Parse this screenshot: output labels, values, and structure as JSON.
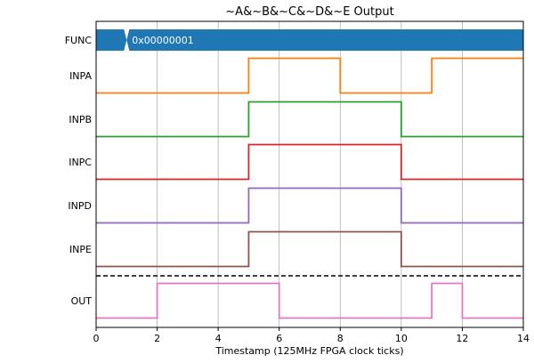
{
  "chart_data": {
    "type": "line",
    "title": "~A&~B&~C&~D&~E Output",
    "xlabel": "Timestamp (125MHz FPGA clock ticks)",
    "ylabel": "",
    "xlim": [
      0,
      14
    ],
    "x_ticks": [
      "0",
      "2",
      "4",
      "6",
      "8",
      "10",
      "12",
      "14"
    ],
    "grid": "vertical",
    "bus": {
      "name": "FUNC",
      "color": "#1f77b4",
      "transitions": [
        1
      ],
      "value_label": "0x00000001"
    },
    "series": [
      {
        "name": "INPA",
        "color": "#ff7f0e",
        "x": [
          0,
          5,
          8,
          11,
          14
        ],
        "y": [
          0,
          1,
          0,
          1,
          1
        ]
      },
      {
        "name": "INPB",
        "color": "#2ca02c",
        "x": [
          0,
          5,
          10,
          14
        ],
        "y": [
          0,
          1,
          0,
          0
        ]
      },
      {
        "name": "INPC",
        "color": "#d62728",
        "x": [
          0,
          5,
          10,
          14
        ],
        "y": [
          0,
          1,
          0,
          0
        ]
      },
      {
        "name": "INPD",
        "color": "#9467bd",
        "x": [
          0,
          5,
          10,
          14
        ],
        "y": [
          0,
          1,
          0,
          0
        ]
      },
      {
        "name": "INPE",
        "color": "#8c564b",
        "x": [
          0,
          5,
          10,
          14
        ],
        "y": [
          0,
          1,
          0,
          0
        ]
      },
      {
        "name": "OUT",
        "color": "#e377c2",
        "x": [
          0,
          2,
          6,
          11,
          12,
          14
        ],
        "y": [
          0,
          1,
          0,
          1,
          0,
          0
        ]
      }
    ]
  }
}
